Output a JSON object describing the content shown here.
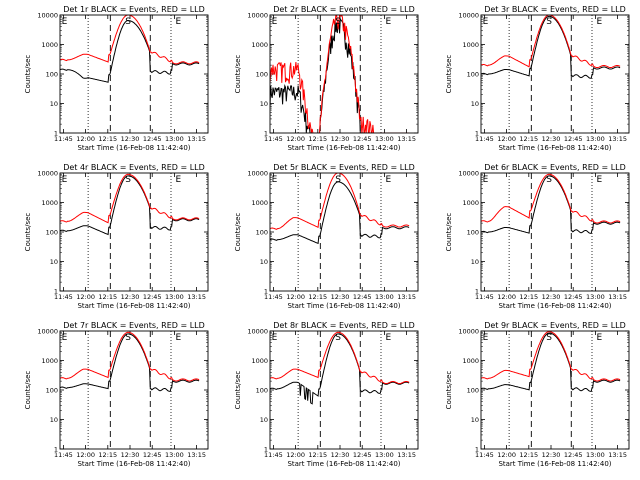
{
  "chart_data": {
    "type": "line",
    "layout": "3x3 grid",
    "y_scale": "log",
    "ylim": [
      1,
      10000
    ],
    "yticks": [
      1,
      10,
      100,
      1000,
      10000
    ],
    "ytick_labels": [
      "1",
      "10",
      "100",
      "1000",
      "10000"
    ],
    "x_range_minutes": [
      0,
      100
    ],
    "xtick_labels": [
      "11:45",
      "12:00",
      "12:15",
      "12:30",
      "12:45",
      "13:00",
      "13:15"
    ],
    "xlabel": "Start Time (16-Feb-08 11:42:40)",
    "ylabel": "Counts/sec",
    "colors": {
      "events": "#000000",
      "lld": "#ff0000",
      "axes": "#000000"
    },
    "dotted_lines_minutes": [
      19,
      75
    ],
    "dashed_lines_minutes": [
      34,
      61
    ],
    "markers": [
      {
        "text": "E",
        "minute": 3
      },
      {
        "text": "S",
        "minute": 46
      },
      {
        "text": "E",
        "minute": 80
      }
    ],
    "panels": [
      {
        "title": "Det 1r BLACK = Events, RED = LLD",
        "hist": "normal",
        "lld": {
          "base": 300,
          "peak": 460,
          "min": 250,
          "spike": 10000,
          "tail": 240
        },
        "events": {
          "base": 140,
          "peak": 75,
          "min": 52,
          "spike": 6500,
          "tail": 220
        }
      },
      {
        "title": "Det 2r BLACK = Events, RED = LLD",
        "hist": "noisy",
        "lld": {
          "base": 150,
          "peak": 150,
          "min": 1,
          "spike": 8000,
          "tail": 1
        },
        "events": {
          "base": 25,
          "peak": 25,
          "min": 1,
          "spike": 5000,
          "tail": 1
        }
      },
      {
        "title": "Det 3r BLACK = Events, RED = LLD",
        "hist": "highclip",
        "lld": {
          "base": 200,
          "peak": 400,
          "min": 170,
          "spike": 10000,
          "tail": 180
        },
        "events": {
          "base": 100,
          "peak": 140,
          "min": 85,
          "spike": 9000,
          "tail": 160
        }
      },
      {
        "title": "Det 4r BLACK = Events, RED = LLD",
        "hist": "normal",
        "lld": {
          "base": 230,
          "peak": 450,
          "min": 200,
          "spike": 9000,
          "tail": 280
        },
        "events": {
          "base": 110,
          "peak": 160,
          "min": 80,
          "spike": 8000,
          "tail": 260
        }
      },
      {
        "title": "Det 5r BLACK = Events, RED = LLD",
        "hist": "highclip",
        "lld": {
          "base": 130,
          "peak": 300,
          "min": 140,
          "spike": 10000,
          "tail": 160
        },
        "events": {
          "base": 55,
          "peak": 80,
          "min": 40,
          "spike": 5000,
          "tail": 140
        }
      },
      {
        "title": "Det 6r BLACK = Events, RED = LLD",
        "hist": "normal",
        "lld": {
          "base": 230,
          "peak": 700,
          "min": 290,
          "spike": 9000,
          "tail": 220
        },
        "events": {
          "base": 100,
          "peak": 140,
          "min": 90,
          "spike": 8000,
          "tail": 200
        }
      },
      {
        "title": "Det 7r BLACK = Events, RED = LLD",
        "hist": "normal",
        "lld": {
          "base": 250,
          "peak": 500,
          "min": 260,
          "spike": 9000,
          "tail": 220
        },
        "events": {
          "base": 120,
          "peak": 160,
          "min": 110,
          "spike": 8000,
          "tail": 200
        }
      },
      {
        "title": "Det 8r BLACK = Events, RED = LLD",
        "hist": "dip",
        "lld": {
          "base": 250,
          "peak": 500,
          "min": 260,
          "spike": 9000,
          "tail": 180
        },
        "events": {
          "base": 110,
          "peak": 180,
          "min": 60,
          "spike": 8000,
          "tail": 170
        }
      },
      {
        "title": "Det 9r BLACK = Events, RED = LLD",
        "hist": "normal",
        "lld": {
          "base": 250,
          "peak": 450,
          "min": 280,
          "spike": 9500,
          "tail": 220
        },
        "events": {
          "base": 110,
          "peak": 150,
          "min": 100,
          "spike": 8500,
          "tail": 200
        }
      }
    ]
  }
}
